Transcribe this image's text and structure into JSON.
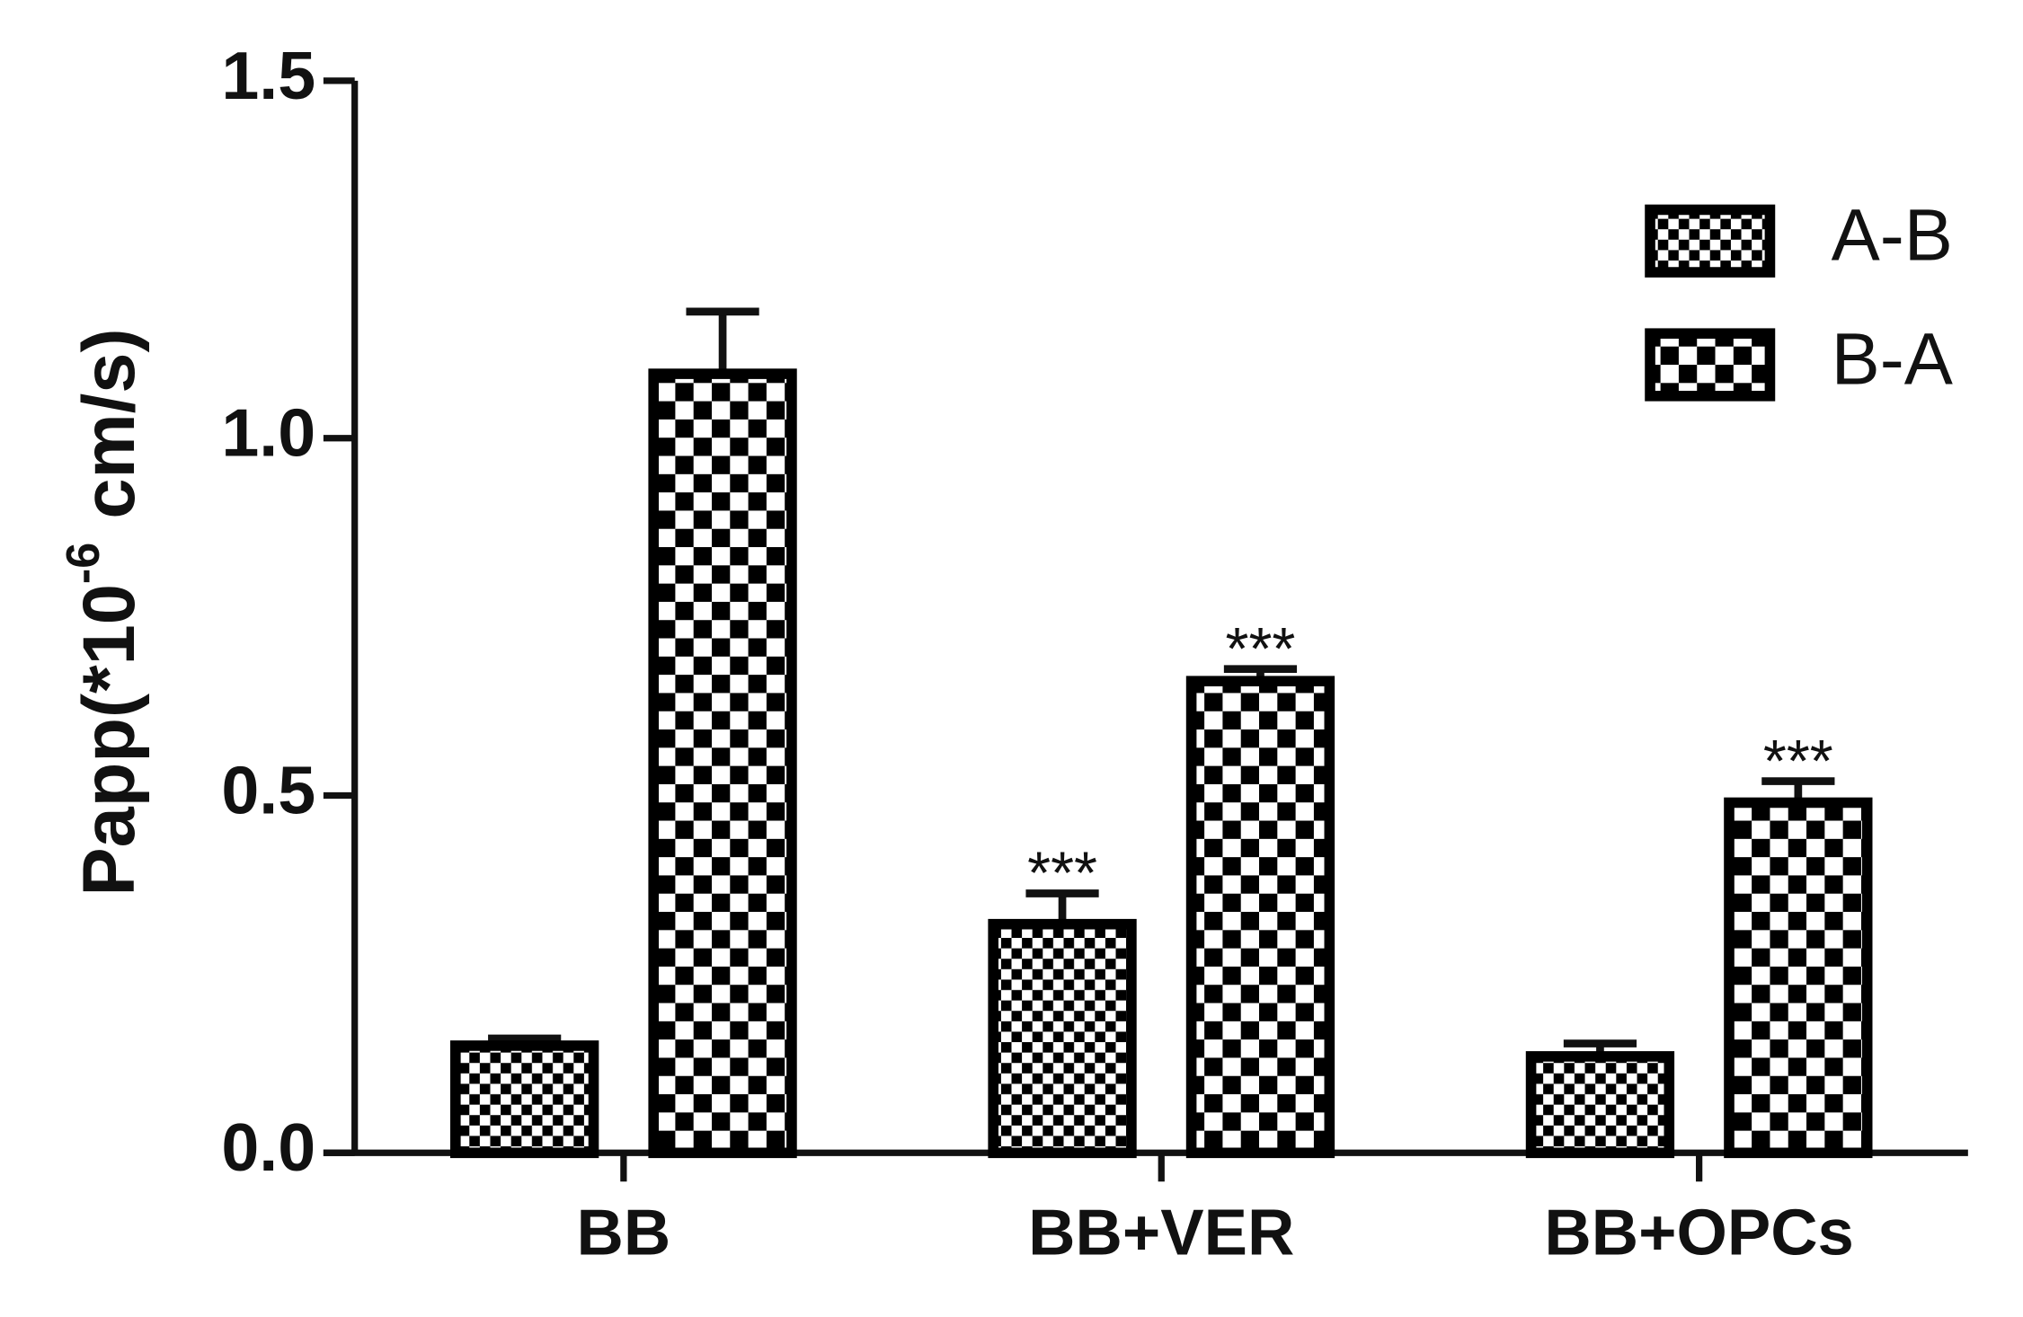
{
  "chart_data": {
    "type": "bar",
    "y_label": {
      "start": "Papp(*10",
      "sup": "-6",
      "end": "cm/s)"
    },
    "categories": [
      "BB",
      "BB+VER",
      "BB+OPCs"
    ],
    "series": [
      {
        "name": "A-B",
        "color": "#000000",
        "pattern": "fine-checker",
        "values": [
          0.15,
          0.32,
          0.135
        ],
        "errors": [
          0.01,
          0.043,
          0.018
        ],
        "significance": [
          null,
          "***",
          null
        ]
      },
      {
        "name": "B-A",
        "color": "#000000",
        "pattern": "coarse-checker",
        "values": [
          1.09,
          0.66,
          0.49
        ],
        "errors": [
          0.087,
          0.017,
          0.03
        ],
        "significance": [
          null,
          "***",
          "***"
        ]
      }
    ],
    "ylim": [
      0,
      1.5
    ],
    "yticks": [
      {
        "value": 0,
        "label": "0.0"
      },
      {
        "value": 0.5,
        "label": "0.5"
      },
      {
        "value": 1,
        "label": "1.0"
      },
      {
        "value": 1.5,
        "label": "1.5"
      }
    ],
    "legend": "top-right"
  }
}
